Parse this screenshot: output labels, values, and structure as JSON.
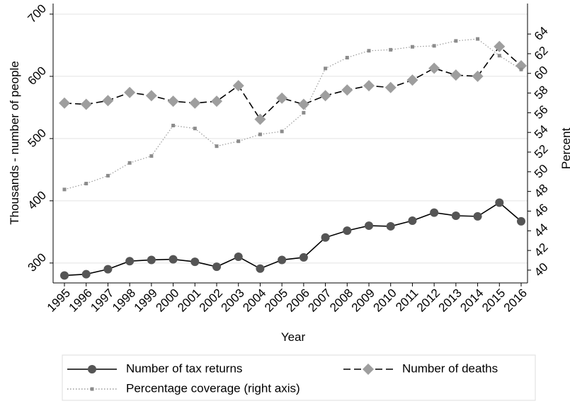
{
  "chart_data": {
    "type": "line",
    "x_label": "Year",
    "y_label": "Thousands - number of people",
    "y2_label": "Percent",
    "categories": [
      "1995",
      "1996",
      "1997",
      "1998",
      "1999",
      "2000",
      "2001",
      "2002",
      "2003",
      "2004",
      "2005",
      "2006",
      "2007",
      "2008",
      "2009",
      "2010",
      "2011",
      "2012",
      "2013",
      "2014",
      "2015",
      "2016"
    ],
    "ylim": [
      268,
      717
    ],
    "yticks": [
      300,
      400,
      500,
      600,
      700
    ],
    "y2lim": [
      38.7,
      67.1
    ],
    "y2ticks": [
      40,
      42,
      44,
      46,
      48,
      50,
      52,
      54,
      56,
      58,
      60,
      62,
      64
    ],
    "grid": true,
    "series": [
      {
        "name": "Number of tax returns",
        "color": "#555555",
        "marker": "circle",
        "dash": "solid",
        "values": [
          280,
          282,
          290,
          303,
          305,
          306,
          302,
          294,
          310,
          291,
          305,
          309,
          341,
          352,
          360,
          359,
          368,
          381,
          376,
          375,
          397,
          367
        ]
      },
      {
        "name": "Number of deaths",
        "color": "#9e9e9e",
        "marker": "diamond",
        "dash": "dashed",
        "values": [
          557,
          555,
          561,
          574,
          569,
          560,
          557,
          560,
          585,
          531,
          565,
          555,
          569,
          578,
          585,
          582,
          594,
          613,
          602,
          600,
          648,
          617
        ]
      },
      {
        "name": "Percentage coverage (right axis)",
        "color": "#8c8c8c",
        "marker": "square",
        "dash": "dotted",
        "axis": "y2",
        "values": [
          48.2,
          48.8,
          49.6,
          50.9,
          51.6,
          54.7,
          54.4,
          52.6,
          53.1,
          53.8,
          54.1,
          56.0,
          60.5,
          61.6,
          62.3,
          62.4,
          62.7,
          62.8,
          63.3,
          63.5,
          61.8,
          60.4
        ]
      }
    ]
  }
}
